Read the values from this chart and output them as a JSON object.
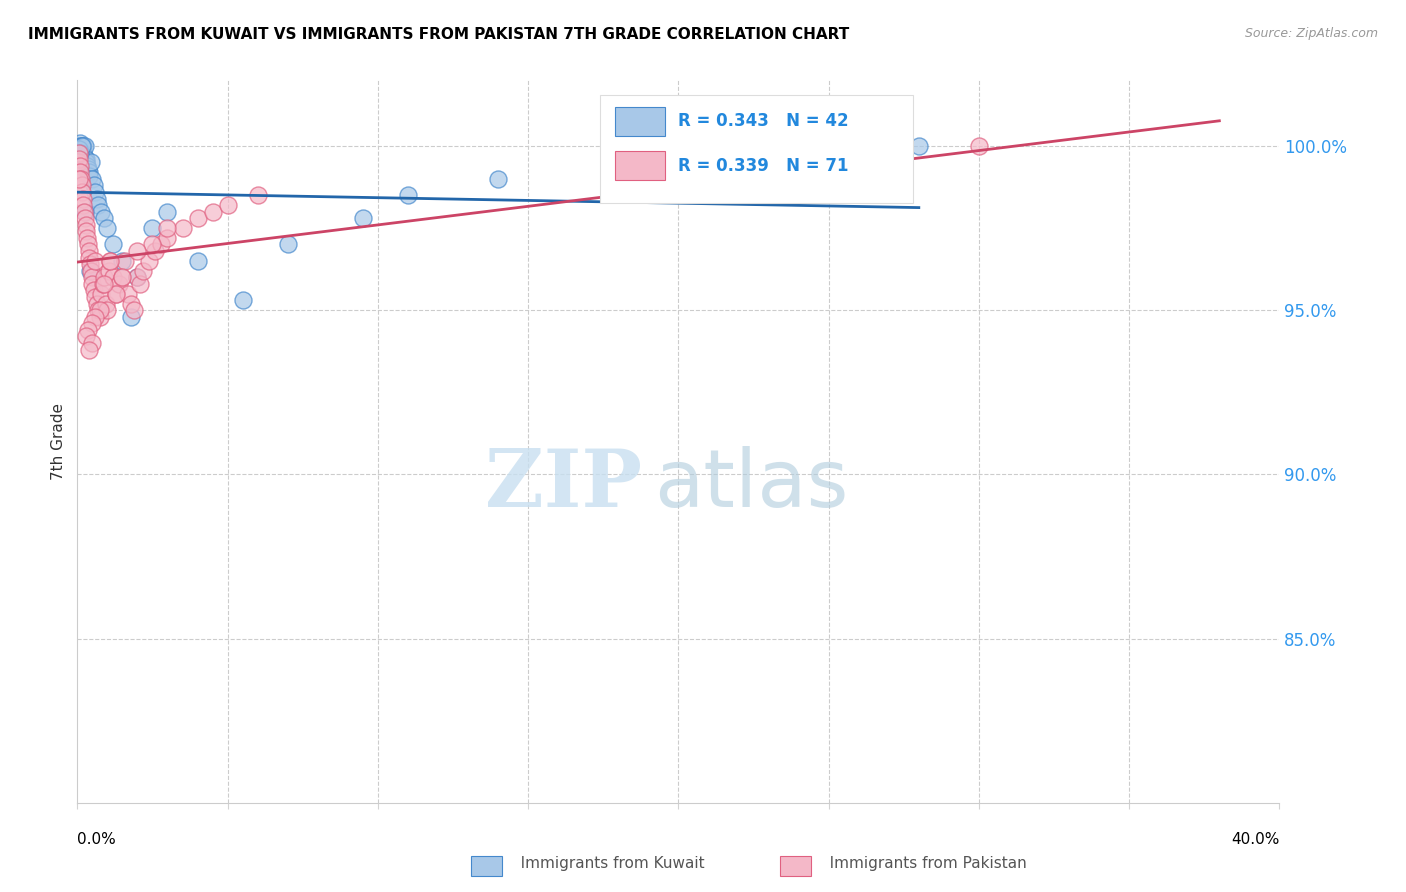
{
  "title": "IMMIGRANTS FROM KUWAIT VS IMMIGRANTS FROM PAKISTAN 7TH GRADE CORRELATION CHART",
  "source": "Source: ZipAtlas.com",
  "ylabel": "7th Grade",
  "kuwait_color": "#a8c8e8",
  "pakistan_color": "#f4b8c8",
  "kuwait_edge_color": "#4488cc",
  "pakistan_edge_color": "#e06080",
  "kuwait_line_color": "#2266aa",
  "pakistan_line_color": "#cc4466",
  "kuwait_R": 0.343,
  "kuwait_N": 42,
  "pakistan_R": 0.339,
  "pakistan_N": 71,
  "xmin": 0.0,
  "xmax": 40.0,
  "ymin": 80.0,
  "ymax": 102.0,
  "grid_yticks": [
    100.0,
    95.0,
    90.0,
    85.0
  ],
  "kuwait_x": [
    0.05,
    0.08,
    0.1,
    0.12,
    0.15,
    0.18,
    0.2,
    0.22,
    0.25,
    0.28,
    0.3,
    0.32,
    0.35,
    0.38,
    0.4,
    0.45,
    0.5,
    0.55,
    0.6,
    0.65,
    0.7,
    0.8,
    0.9,
    1.0,
    1.2,
    1.5,
    2.0,
    2.5,
    3.0,
    4.0,
    5.5,
    7.0,
    9.5,
    11.0,
    14.0,
    28.0,
    0.06,
    0.09,
    0.14,
    0.25,
    0.42,
    1.8
  ],
  "kuwait_y": [
    100.0,
    100.1,
    100.0,
    99.9,
    100.0,
    100.0,
    99.8,
    99.7,
    100.0,
    99.6,
    99.5,
    99.4,
    99.3,
    99.2,
    99.1,
    99.5,
    99.0,
    98.8,
    98.6,
    98.4,
    98.2,
    98.0,
    97.8,
    97.5,
    97.0,
    96.5,
    96.0,
    97.5,
    98.0,
    96.5,
    95.3,
    97.0,
    97.8,
    98.5,
    99.0,
    100.0,
    99.9,
    99.8,
    100.0,
    98.0,
    96.2,
    94.8
  ],
  "pakistan_x": [
    0.03,
    0.05,
    0.07,
    0.08,
    0.1,
    0.12,
    0.14,
    0.15,
    0.18,
    0.2,
    0.22,
    0.25,
    0.28,
    0.3,
    0.32,
    0.35,
    0.38,
    0.4,
    0.42,
    0.45,
    0.48,
    0.5,
    0.55,
    0.58,
    0.6,
    0.65,
    0.7,
    0.75,
    0.8,
    0.85,
    0.9,
    0.95,
    1.0,
    1.05,
    1.1,
    1.2,
    1.3,
    1.4,
    1.5,
    1.6,
    1.7,
    1.8,
    1.9,
    2.0,
    2.1,
    2.2,
    2.4,
    2.6,
    2.8,
    3.0,
    3.5,
    4.0,
    4.5,
    5.0,
    6.0,
    2.5,
    1.3,
    1.1,
    0.9,
    0.75,
    0.6,
    0.48,
    0.35,
    0.28,
    3.0,
    2.0,
    1.5,
    0.5,
    0.4,
    30.0,
    0.06
  ],
  "pakistan_y": [
    99.5,
    99.8,
    99.6,
    99.4,
    99.2,
    99.0,
    98.8,
    98.6,
    98.4,
    98.2,
    98.0,
    97.8,
    97.6,
    97.4,
    97.2,
    97.0,
    96.8,
    96.6,
    96.4,
    96.2,
    96.0,
    95.8,
    95.6,
    96.5,
    95.4,
    95.2,
    95.0,
    94.8,
    95.5,
    95.8,
    96.0,
    95.2,
    95.0,
    96.2,
    96.5,
    96.0,
    95.5,
    95.8,
    96.0,
    96.5,
    95.5,
    95.2,
    95.0,
    96.0,
    95.8,
    96.2,
    96.5,
    96.8,
    97.0,
    97.2,
    97.5,
    97.8,
    98.0,
    98.2,
    98.5,
    97.0,
    95.5,
    96.5,
    95.8,
    95.0,
    94.8,
    94.6,
    94.4,
    94.2,
    97.5,
    96.8,
    96.0,
    94.0,
    93.8,
    100.0,
    99.0
  ],
  "legend_color": "#2288dd",
  "watermark_zip_color": "#c8dff0",
  "watermark_atlas_color": "#b0ccdd"
}
